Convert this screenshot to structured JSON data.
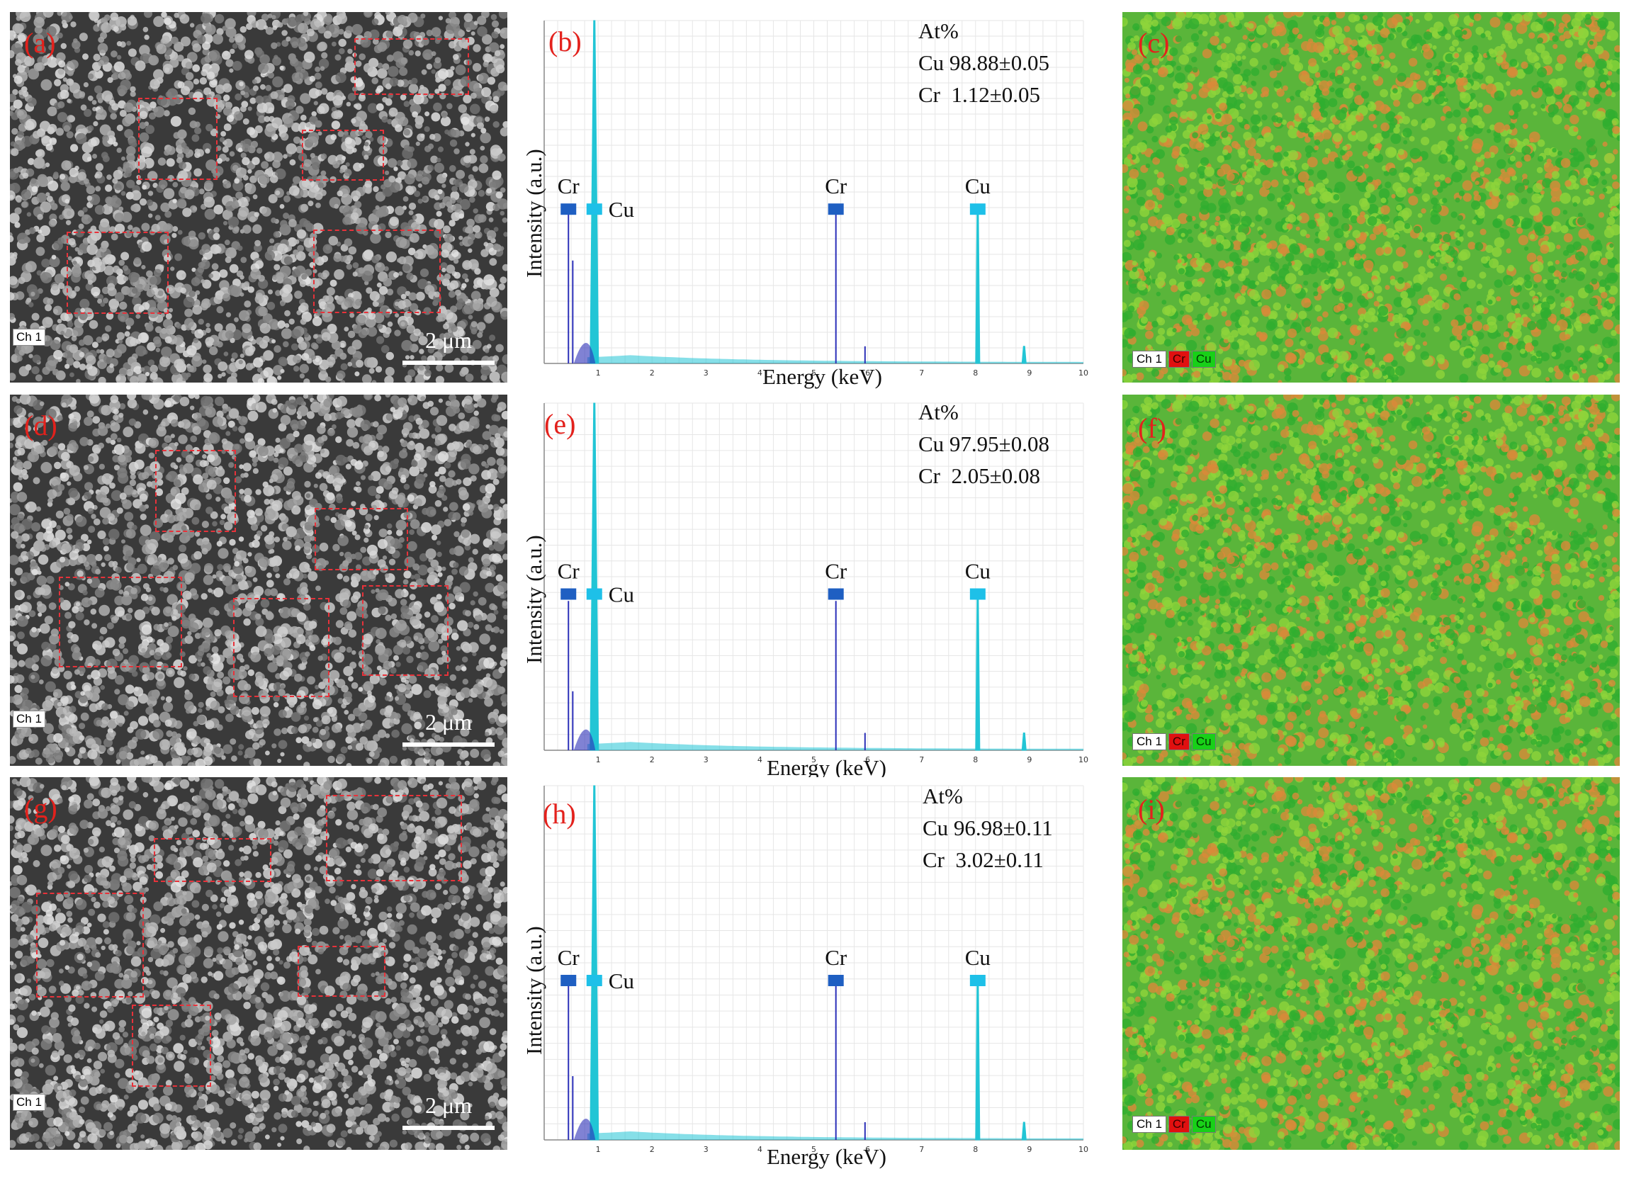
{
  "figure": {
    "rows": [
      {
        "sem": {
          "label": "(a)",
          "channel": "Ch 1",
          "scale_label": "2 μm"
        },
        "eds": {
          "label": "(b)",
          "at_header": "At%",
          "at_lines": [
            "Cu 98.88±0.05",
            "Cr  1.12±0.05"
          ]
        },
        "map": {
          "label": "(c)",
          "legend": [
            "Ch 1",
            "Cr",
            "Cu"
          ]
        }
      },
      {
        "sem": {
          "label": "(d)",
          "channel": "Ch 1",
          "scale_label": "2 μm"
        },
        "eds": {
          "label": "(e)",
          "at_header": "At%",
          "at_lines": [
            "Cu 97.95±0.08",
            "Cr  2.05±0.08"
          ]
        },
        "map": {
          "label": "(f)",
          "legend": [
            "Ch 1",
            "Cr",
            "Cu"
          ]
        }
      },
      {
        "sem": {
          "label": "(g)",
          "channel": "Ch 1",
          "scale_label": "2 μm"
        },
        "eds": {
          "label": "(h)",
          "at_header": "At%",
          "at_lines": [
            "Cu 96.98±0.11",
            "Cr  3.02±0.11"
          ]
        },
        "map": {
          "label": "(i)",
          "legend": [
            "Ch 1",
            "Cr",
            "Cu"
          ]
        }
      }
    ]
  },
  "colors": {
    "cr_line": "#2b2fb8",
    "cu_fill": "#22c5d5",
    "cr_marker": "#1f5fc2",
    "cu_marker": "#1ec0e8",
    "grid": "#e6e6e6",
    "label_red": "#e3211c"
  },
  "chart_data": [
    {
      "type": "line",
      "title": "(b)",
      "xlabel": "Energy (keV)",
      "ylabel": "Intensity (a.u.)",
      "xlim": [
        0,
        10
      ],
      "xticks": [
        "1",
        "2",
        "3",
        "4",
        "5",
        "6",
        "7",
        "8",
        "9",
        "10"
      ],
      "peaks": [
        {
          "element": "Cr",
          "energy": 0.45,
          "intensity": 0.44,
          "series": "Cr"
        },
        {
          "element": "Cr",
          "energy": 0.53,
          "intensity": 0.3,
          "series": "Cr"
        },
        {
          "element": "Cu",
          "energy": 0.93,
          "intensity": 1.0,
          "series": "Cu"
        },
        {
          "element": "Cr",
          "energy": 5.41,
          "intensity": 0.45,
          "series": "Cr"
        },
        {
          "element": "Cr",
          "energy": 5.95,
          "intensity": 0.05,
          "series": "Cr"
        },
        {
          "element": "Cu",
          "energy": 8.04,
          "intensity": 0.45,
          "series": "Cu"
        },
        {
          "element": "Cu",
          "energy": 8.9,
          "intensity": 0.05,
          "series": "Cu"
        }
      ],
      "markers": [
        {
          "element": "Cr",
          "energy": 0.45,
          "text": "Cr"
        },
        {
          "element": "Cu",
          "energy": 0.93,
          "text": "Cu"
        },
        {
          "element": "Cr",
          "energy": 5.41,
          "text": "Cr"
        },
        {
          "element": "Cu",
          "energy": 8.04,
          "text": "Cu"
        }
      ]
    },
    {
      "type": "line",
      "title": "(e)",
      "xlabel": "Energy (keV)",
      "ylabel": "Intensity (a.u.)",
      "xlim": [
        0,
        10
      ],
      "xticks": [
        "1",
        "2",
        "3",
        "4",
        "5",
        "6",
        "7",
        "8",
        "9",
        "10"
      ],
      "peaks": [
        {
          "element": "Cr",
          "energy": 0.45,
          "intensity": 0.43,
          "series": "Cr"
        },
        {
          "element": "Cr",
          "energy": 0.53,
          "intensity": 0.17,
          "series": "Cr"
        },
        {
          "element": "Cu",
          "energy": 0.93,
          "intensity": 1.0,
          "series": "Cu"
        },
        {
          "element": "Cr",
          "energy": 5.41,
          "intensity": 0.43,
          "series": "Cr"
        },
        {
          "element": "Cr",
          "energy": 5.95,
          "intensity": 0.05,
          "series": "Cr"
        },
        {
          "element": "Cu",
          "energy": 8.04,
          "intensity": 0.44,
          "series": "Cu"
        },
        {
          "element": "Cu",
          "energy": 8.9,
          "intensity": 0.05,
          "series": "Cu"
        }
      ],
      "markers": [
        {
          "element": "Cr",
          "energy": 0.45,
          "text": "Cr"
        },
        {
          "element": "Cu",
          "energy": 0.93,
          "text": "Cu"
        },
        {
          "element": "Cr",
          "energy": 5.41,
          "text": "Cr"
        },
        {
          "element": "Cu",
          "energy": 8.04,
          "text": "Cu"
        }
      ]
    },
    {
      "type": "line",
      "title": "(h)",
      "xlabel": "Energy (keV)",
      "ylabel": "Intensity (a.u.)",
      "xlim": [
        0,
        10
      ],
      "xticks": [
        "1",
        "2",
        "3",
        "4",
        "5",
        "6",
        "7",
        "8",
        "9",
        "10"
      ],
      "peaks": [
        {
          "element": "Cr",
          "energy": 0.45,
          "intensity": 0.44,
          "series": "Cr"
        },
        {
          "element": "Cr",
          "energy": 0.53,
          "intensity": 0.18,
          "series": "Cr"
        },
        {
          "element": "Cu",
          "energy": 0.93,
          "intensity": 1.0,
          "series": "Cu"
        },
        {
          "element": "Cr",
          "energy": 5.41,
          "intensity": 0.45,
          "series": "Cr"
        },
        {
          "element": "Cr",
          "energy": 5.95,
          "intensity": 0.05,
          "series": "Cr"
        },
        {
          "element": "Cu",
          "energy": 8.04,
          "intensity": 0.45,
          "series": "Cu"
        },
        {
          "element": "Cu",
          "energy": 8.9,
          "intensity": 0.05,
          "series": "Cu"
        }
      ],
      "markers": [
        {
          "element": "Cr",
          "energy": 0.45,
          "text": "Cr"
        },
        {
          "element": "Cu",
          "energy": 0.93,
          "text": "Cu"
        },
        {
          "element": "Cr",
          "energy": 5.41,
          "text": "Cr"
        },
        {
          "element": "Cu",
          "energy": 8.04,
          "text": "Cu"
        }
      ]
    }
  ]
}
